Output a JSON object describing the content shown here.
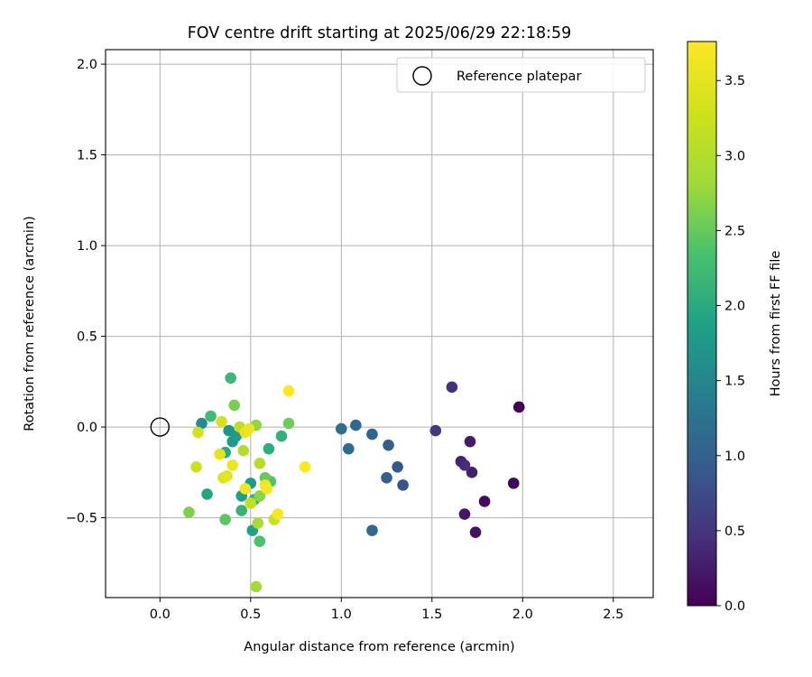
{
  "chart_data": {
    "type": "scatter",
    "title": "FOV centre drift starting at 2025/06/29 22:18:59",
    "xlabel": "Angular distance from reference (arcmin)",
    "ylabel": "Rotation from reference (arcmin)",
    "xlim": [
      -0.3,
      2.72
    ],
    "ylim": [
      -0.94,
      2.08
    ],
    "xticks": [
      "0.0",
      "0.5",
      "1.0",
      "1.5",
      "2.0",
      "2.5"
    ],
    "xtick_values": [
      0,
      0.5,
      1.0,
      1.5,
      2.0,
      2.5
    ],
    "yticks": [
      "−0.5",
      "0.0",
      "0.5",
      "1.0",
      "1.5",
      "2.0"
    ],
    "ytick_values": [
      -0.5,
      0,
      0.5,
      1.0,
      1.5,
      2.0
    ],
    "grid": true,
    "legend_position": "upper right",
    "legend": [
      {
        "label": "Reference platepar",
        "marker": "open-circle",
        "x": 0,
        "y": 0
      }
    ],
    "colorbar": {
      "label": "Hours from first FF file",
      "colormap": "viridis",
      "range": [
        0,
        3.76
      ],
      "ticks": [
        "0.0",
        "0.5",
        "1.0",
        "1.5",
        "2.0",
        "2.5",
        "3.0",
        "3.5"
      ],
      "tick_values": [
        0,
        0.5,
        1.0,
        1.5,
        2.0,
        2.5,
        3.0,
        3.5
      ]
    },
    "points": [
      {
        "x": 1.98,
        "y": 0.11,
        "c": 0.0
      },
      {
        "x": 1.95,
        "y": -0.31,
        "c": 0.05
      },
      {
        "x": 1.79,
        "y": -0.41,
        "c": 0.1
      },
      {
        "x": 1.74,
        "y": -0.58,
        "c": 0.15
      },
      {
        "x": 1.68,
        "y": -0.48,
        "c": 0.2
      },
      {
        "x": 1.71,
        "y": -0.08,
        "c": 0.25
      },
      {
        "x": 1.72,
        "y": -0.25,
        "c": 0.3
      },
      {
        "x": 1.66,
        "y": -0.19,
        "c": 0.35
      },
      {
        "x": 1.68,
        "y": -0.21,
        "c": 0.4
      },
      {
        "x": 1.61,
        "y": 0.22,
        "c": 0.45
      },
      {
        "x": 1.52,
        "y": -0.02,
        "c": 0.55
      },
      {
        "x": 1.34,
        "y": -0.32,
        "c": 0.85
      },
      {
        "x": 1.31,
        "y": -0.22,
        "c": 0.9
      },
      {
        "x": 1.26,
        "y": -0.1,
        "c": 0.95
      },
      {
        "x": 1.25,
        "y": -0.28,
        "c": 1.0
      },
      {
        "x": 1.17,
        "y": -0.04,
        "c": 1.05
      },
      {
        "x": 1.17,
        "y": -0.57,
        "c": 1.1
      },
      {
        "x": 1.08,
        "y": 0.01,
        "c": 1.1
      },
      {
        "x": 1.04,
        "y": -0.12,
        "c": 1.15
      },
      {
        "x": 1.0,
        "y": -0.01,
        "c": 1.15
      },
      {
        "x": 0.23,
        "y": 0.02,
        "c": 1.6
      },
      {
        "x": 0.38,
        "y": -0.02,
        "c": 1.7
      },
      {
        "x": 0.42,
        "y": -0.05,
        "c": 1.75
      },
      {
        "x": 0.4,
        "y": -0.08,
        "c": 1.8
      },
      {
        "x": 0.5,
        "y": -0.31,
        "c": 1.8
      },
      {
        "x": 0.45,
        "y": -0.38,
        "c": 1.85
      },
      {
        "x": 0.51,
        "y": -0.57,
        "c": 1.9
      },
      {
        "x": 0.26,
        "y": -0.37,
        "c": 1.95
      },
      {
        "x": 0.36,
        "y": -0.14,
        "c": 2.0
      },
      {
        "x": 0.6,
        "y": -0.12,
        "c": 2.05
      },
      {
        "x": 0.67,
        "y": -0.05,
        "c": 2.1
      },
      {
        "x": 0.52,
        "y": -0.4,
        "c": 2.1
      },
      {
        "x": 0.45,
        "y": -0.46,
        "c": 2.15
      },
      {
        "x": 0.39,
        "y": 0.27,
        "c": 2.2
      },
      {
        "x": 0.28,
        "y": 0.06,
        "c": 2.25
      },
      {
        "x": 0.55,
        "y": -0.63,
        "c": 2.35
      },
      {
        "x": 0.61,
        "y": -0.3,
        "c": 2.4
      },
      {
        "x": 0.36,
        "y": -0.51,
        "c": 2.45
      },
      {
        "x": 0.58,
        "y": -0.28,
        "c": 2.5
      },
      {
        "x": 0.71,
        "y": 0.02,
        "c": 2.55
      },
      {
        "x": 0.41,
        "y": 0.12,
        "c": 2.6
      },
      {
        "x": 0.16,
        "y": -0.47,
        "c": 2.65
      },
      {
        "x": 0.55,
        "y": -0.38,
        "c": 2.7
      },
      {
        "x": 0.53,
        "y": 0.01,
        "c": 2.75
      },
      {
        "x": 0.53,
        "y": -0.88,
        "c": 2.85
      },
      {
        "x": 0.54,
        "y": -0.53,
        "c": 2.9
      },
      {
        "x": 0.46,
        "y": -0.13,
        "c": 3.0
      },
      {
        "x": 0.55,
        "y": -0.2,
        "c": 3.05
      },
      {
        "x": 0.44,
        "y": 0.0,
        "c": 3.1
      },
      {
        "x": 0.5,
        "y": -0.42,
        "c": 3.15
      },
      {
        "x": 0.63,
        "y": -0.51,
        "c": 3.2
      },
      {
        "x": 0.2,
        "y": -0.22,
        "c": 3.25
      },
      {
        "x": 0.21,
        "y": -0.03,
        "c": 3.3
      },
      {
        "x": 0.34,
        "y": 0.03,
        "c": 3.35
      },
      {
        "x": 0.35,
        "y": -0.28,
        "c": 3.4
      },
      {
        "x": 0.33,
        "y": -0.15,
        "c": 3.5
      },
      {
        "x": 0.37,
        "y": -0.27,
        "c": 3.5
      },
      {
        "x": 0.47,
        "y": -0.03,
        "c": 3.55
      },
      {
        "x": 0.49,
        "y": -0.01,
        "c": 3.6
      },
      {
        "x": 0.4,
        "y": -0.21,
        "c": 3.6
      },
      {
        "x": 0.47,
        "y": -0.34,
        "c": 3.65
      },
      {
        "x": 0.58,
        "y": -0.32,
        "c": 3.65
      },
      {
        "x": 0.59,
        "y": -0.34,
        "c": 3.7
      },
      {
        "x": 0.65,
        "y": -0.48,
        "c": 3.7
      },
      {
        "x": 0.71,
        "y": 0.2,
        "c": 3.75
      },
      {
        "x": 0.8,
        "y": -0.22,
        "c": 3.75
      }
    ]
  }
}
